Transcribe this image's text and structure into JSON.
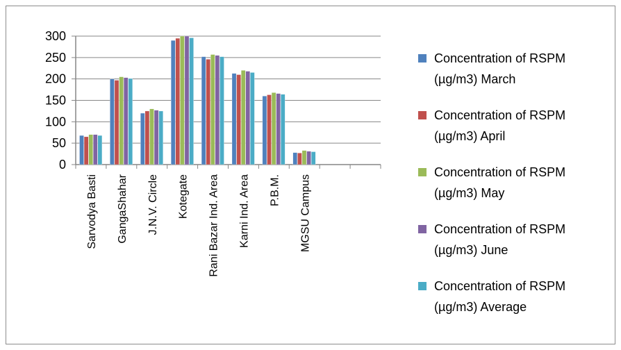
{
  "chart_data": {
    "type": "bar",
    "title": "",
    "xlabel": "",
    "ylabel": "",
    "ylim": [
      0,
      300
    ],
    "yticks": [
      "0",
      "50",
      "100",
      "150",
      "200",
      "250",
      "300"
    ],
    "grid": false,
    "legend_placement": "right",
    "categories": [
      "Sarvodya Basti",
      "GangaShahar",
      "J.N.V. Circle",
      "Kotegate",
      "Rani Bazar Ind. Area",
      "Karni Ind. Area",
      "P.B.M.",
      "MGSU Campus"
    ],
    "series": [
      {
        "name": "Concentration of RSPM (µg/m3) March",
        "color": "#4f81bd",
        "values": [
          68,
          200,
          120,
          290,
          252,
          213,
          160,
          28
        ]
      },
      {
        "name": "Concentration of RSPM (µg/m3) April",
        "color": "#c0504d",
        "values": [
          65,
          197,
          125,
          295,
          246,
          210,
          163,
          27
        ]
      },
      {
        "name": "Concentration of RSPM (µg/m3) May",
        "color": "#9bbb59",
        "values": [
          70,
          205,
          130,
          300,
          257,
          220,
          168,
          33
        ]
      },
      {
        "name": "Concentration of RSPM (µg/m3) June",
        "color": "#8064a2",
        "values": [
          70,
          203,
          127,
          300,
          255,
          218,
          166,
          31
        ]
      },
      {
        "name": "Concentration of RSPM (µg/m3) Average",
        "color": "#4bacc6",
        "values": [
          68,
          201,
          125,
          296,
          252,
          215,
          164,
          30
        ]
      }
    ],
    "legend_lines": [
      [
        "Concentration of RSPM",
        "(µg/m3) March"
      ],
      [
        "Concentration of RSPM",
        "(µg/m3) April"
      ],
      [
        "Concentration of RSPM",
        "(µg/m3) May"
      ],
      [
        "Concentration of RSPM",
        "(µg/m3) June"
      ],
      [
        "Concentration of RSPM",
        "(µg/m3) Average"
      ]
    ]
  }
}
